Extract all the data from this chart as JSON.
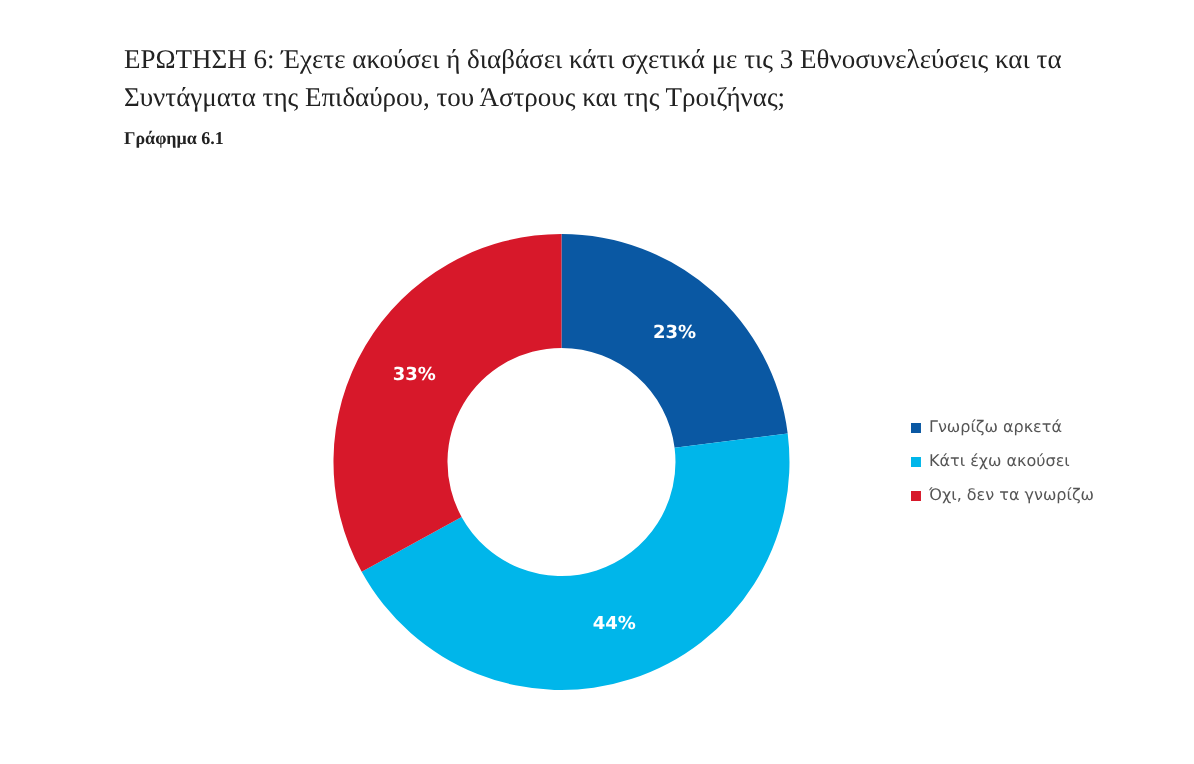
{
  "chart_data": {
    "type": "donut",
    "title": "ΕΡΩΤΗΣΗ 6: Έχετε ακούσει ή διαβάσει κάτι σχετικά με τις 3 Εθνοσυνελεύσεις και τα Συντάγματα της Επιδαύρου, του Άστρους και της Τροιζήνας;",
    "subtitle": "Γράφημα 6.1",
    "categories": [
      "Γνωρίζω αρκετά",
      "Κάτι έχω ακούσει",
      "Όχι, δεν τα γνωρίζω"
    ],
    "values": [
      23,
      44,
      33
    ],
    "value_labels": [
      "23%",
      "44%",
      "33%"
    ],
    "colors": [
      "#0a58a3",
      "#00b6ea",
      "#d7182a"
    ],
    "legend": "right"
  }
}
